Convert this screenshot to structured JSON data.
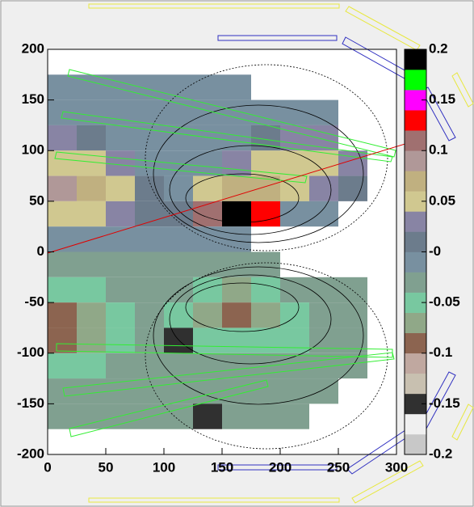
{
  "chart_data": {
    "type": "heatmap",
    "xbins": [
      0,
      25,
      50,
      75,
      100,
      125,
      150,
      175,
      200,
      225,
      250,
      275,
      300
    ],
    "ybins": [
      200,
      175,
      150,
      125,
      100,
      75,
      50,
      25,
      0,
      -25,
      -50,
      -75,
      -100,
      -125,
      -150,
      -175,
      -200
    ],
    "values": [
      [
        null,
        null,
        null,
        null,
        null,
        null,
        null,
        null,
        null,
        null,
        null,
        null
      ],
      [
        -0.01,
        -0.01,
        -0.01,
        -0.01,
        -0.01,
        -0.01,
        -0.01,
        null,
        null,
        null,
        null,
        null
      ],
      [
        -0.01,
        -0.01,
        -0.01,
        -0.01,
        -0.01,
        -0.01,
        -0.01,
        -0.01,
        -0.01,
        -0.01,
        null,
        null
      ],
      [
        0.03,
        0.01,
        -0.01,
        -0.01,
        -0.01,
        -0.01,
        -0.01,
        0.01,
        0.03,
        0.03,
        null,
        null
      ],
      [
        0.05,
        0.05,
        0.03,
        -0.01,
        -0.01,
        -0.01,
        0.03,
        0.05,
        0.05,
        0.05,
        0.03,
        null
      ],
      [
        0.09,
        0.07,
        0.05,
        0.01,
        -0.01,
        0.05,
        0.07,
        0.07,
        0.05,
        0.03,
        0.01,
        null
      ],
      [
        0.05,
        0.05,
        0.03,
        0.01,
        0.01,
        0.11,
        0.19,
        0.13,
        -0.01,
        -0.01,
        null,
        null
      ],
      [
        -0.01,
        -0.01,
        -0.01,
        -0.01,
        -0.01,
        -0.01,
        -0.01,
        null,
        null,
        null,
        null,
        null
      ],
      [
        -0.03,
        -0.03,
        -0.03,
        -0.03,
        -0.03,
        -0.03,
        -0.03,
        -0.03,
        null,
        null,
        null,
        null
      ],
      [
        -0.05,
        -0.05,
        -0.03,
        -0.03,
        -0.03,
        -0.05,
        -0.07,
        -0.05,
        -0.03,
        -0.03,
        -0.03,
        null
      ],
      [
        -0.09,
        -0.07,
        -0.05,
        -0.03,
        -0.05,
        -0.07,
        -0.09,
        -0.07,
        -0.05,
        -0.03,
        -0.03,
        null
      ],
      [
        -0.09,
        -0.07,
        -0.05,
        -0.03,
        -0.15,
        -0.05,
        -0.05,
        -0.05,
        -0.05,
        -0.03,
        -0.03,
        null
      ],
      [
        -0.05,
        -0.05,
        -0.03,
        -0.03,
        -0.03,
        -0.03,
        -0.03,
        -0.03,
        -0.03,
        -0.03,
        -0.03,
        null
      ],
      [
        -0.03,
        -0.03,
        -0.03,
        -0.03,
        -0.03,
        -0.03,
        -0.03,
        -0.03,
        -0.03,
        -0.03,
        null,
        null
      ],
      [
        -0.03,
        -0.03,
        -0.03,
        -0.03,
        -0.03,
        -0.15,
        -0.03,
        -0.03,
        -0.03,
        null,
        null,
        null
      ],
      [
        null,
        null,
        null,
        null,
        null,
        null,
        null,
        null,
        null,
        null,
        null,
        null
      ]
    ],
    "xlim": [
      0,
      300
    ],
    "ylim": [
      -200,
      200
    ],
    "xticks": [
      0,
      50,
      100,
      150,
      200,
      250,
      300
    ],
    "yticks": [
      -200,
      -150,
      -100,
      -50,
      0,
      50,
      100,
      150,
      200
    ],
    "zlim": [
      -0.2,
      0.2
    ],
    "zticks": [
      -0.2,
      -0.15,
      -0.1,
      -0.05,
      {
        "value": 0,
        "label": "-0"
      },
      0.05,
      0.1,
      0.15,
      0.2
    ],
    "colors": [
      "#c8c8c8",
      "#f0f0f0",
      "#303030",
      "#c8c0b0",
      "#c0a8a0",
      "#8c6450",
      "#90a888",
      "#78c8a0",
      "#80a090",
      "#7890a0",
      "#6c7c8c",
      "#8884a4",
      "#d0c890",
      "#c0b080",
      "#b09898",
      "#a07070",
      "#ff0000",
      "#ff00ff",
      "#00ff00",
      "#000000"
    ]
  }
}
